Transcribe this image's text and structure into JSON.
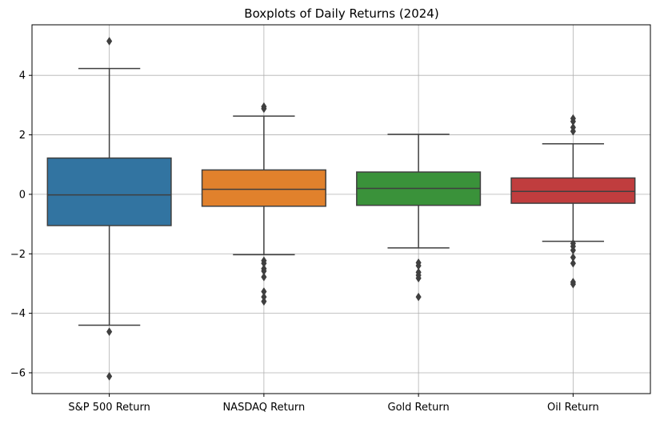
{
  "chart_data": {
    "type": "boxplot",
    "title": "Boxplots of Daily Returns (2024)",
    "xlabel": "",
    "ylabel": "",
    "ylim": [
      -6.7,
      5.7
    ],
    "yticks": [
      -6,
      -4,
      -2,
      0,
      2,
      4
    ],
    "grid": true,
    "legend": "none",
    "categories": [
      "S&P 500 Return",
      "NASDAQ Return",
      "Gold Return",
      "Oil Return"
    ],
    "series": [
      {
        "category": "S&P 500 Return",
        "color": "#3274a1",
        "whisker_low": -4.4,
        "q1": -1.05,
        "median": -0.02,
        "q3": 1.22,
        "whisker_high": 4.23,
        "outliers": [
          5.15,
          -4.62,
          -6.12
        ]
      },
      {
        "category": "NASDAQ Return",
        "color": "#e1812c",
        "whisker_low": -2.03,
        "q1": -0.4,
        "median": 0.17,
        "q3": 0.82,
        "whisker_high": 2.63,
        "outliers": [
          2.95,
          2.88,
          -2.23,
          -2.32,
          -2.5,
          -2.58,
          -2.78,
          -3.27,
          -3.45,
          -3.6
        ]
      },
      {
        "category": "Gold Return",
        "color": "#3a923a",
        "whisker_low": -1.8,
        "q1": -0.37,
        "median": 0.2,
        "q3": 0.75,
        "whisker_high": 2.02,
        "outliers": [
          -2.3,
          -2.4,
          -2.62,
          -2.72,
          -2.82,
          -3.45
        ]
      },
      {
        "category": "Oil Return",
        "color": "#c03d3e",
        "whisker_low": -1.58,
        "q1": -0.3,
        "median": 0.1,
        "q3": 0.55,
        "whisker_high": 1.7,
        "outliers": [
          2.55,
          2.45,
          2.25,
          2.12,
          -1.65,
          -1.75,
          -1.88,
          -2.12,
          -2.32,
          -2.95,
          -3.02
        ]
      }
    ]
  }
}
